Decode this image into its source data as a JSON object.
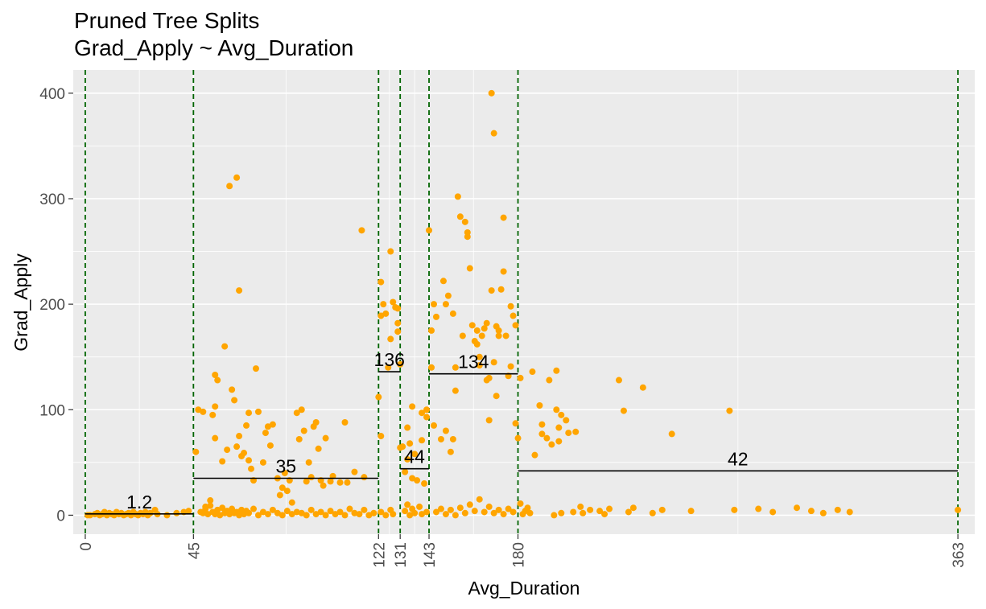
{
  "chart_data": {
    "type": "scatter",
    "title": "Pruned Tree Splits",
    "subtitle": "Grad_Apply ~ Avg_Duration",
    "xlabel": "Avg_Duration",
    "ylabel": "Grad_Apply",
    "xlim": [
      -5,
      370
    ],
    "ylim": [
      -18,
      422
    ],
    "x_ticks": [
      0,
      45,
      122,
      131,
      143,
      180,
      363
    ],
    "y_ticks": [
      0,
      100,
      200,
      300,
      400
    ],
    "grid": true,
    "point_color": "#ffa500",
    "split_color": "#006400",
    "segment_color": "#000000",
    "panel_color": "#ebebeb",
    "splits": [
      0,
      45,
      122,
      131,
      143,
      180,
      363
    ],
    "segments": [
      {
        "x0": 0,
        "x1": 45,
        "value": 1.2,
        "label": "1.2"
      },
      {
        "x0": 45,
        "x1": 122,
        "value": 35,
        "label": "35"
      },
      {
        "x0": 122,
        "x1": 131,
        "value": 136,
        "label": "136"
      },
      {
        "x0": 131,
        "x1": 143,
        "value": 44,
        "label": "44"
      },
      {
        "x0": 143,
        "x1": 180,
        "value": 134,
        "label": "134"
      },
      {
        "x0": 180,
        "x1": 363,
        "value": 42,
        "label": "42"
      }
    ],
    "points": [
      [
        1,
        0
      ],
      [
        2,
        0
      ],
      [
        4,
        1
      ],
      [
        5,
        2
      ],
      [
        6,
        0
      ],
      [
        7,
        1
      ],
      [
        8,
        3
      ],
      [
        9,
        0
      ],
      [
        10,
        2
      ],
      [
        11,
        1
      ],
      [
        12,
        0
      ],
      [
        13,
        3
      ],
      [
        14,
        1
      ],
      [
        15,
        2
      ],
      [
        16,
        0
      ],
      [
        17,
        1
      ],
      [
        18,
        2
      ],
      [
        19,
        0
      ],
      [
        20,
        3
      ],
      [
        21,
        1
      ],
      [
        22,
        0
      ],
      [
        23,
        2
      ],
      [
        24,
        1
      ],
      [
        25,
        3
      ],
      [
        26,
        0
      ],
      [
        27,
        2
      ],
      [
        29,
        5
      ],
      [
        30,
        1
      ],
      [
        34,
        0
      ],
      [
        38,
        2
      ],
      [
        41,
        3
      ],
      [
        43,
        4
      ],
      [
        46,
        60
      ],
      [
        47,
        100
      ],
      [
        49,
        98
      ],
      [
        50,
        8
      ],
      [
        52,
        14
      ],
      [
        53,
        95
      ],
      [
        54,
        103
      ],
      [
        54,
        133
      ],
      [
        54,
        73
      ],
      [
        55,
        128
      ],
      [
        57,
        51
      ],
      [
        58,
        160
      ],
      [
        59,
        62
      ],
      [
        60,
        312
      ],
      [
        61,
        119
      ],
      [
        62,
        109
      ],
      [
        63,
        320
      ],
      [
        63,
        65
      ],
      [
        64,
        213
      ],
      [
        64,
        75
      ],
      [
        65,
        56
      ],
      [
        66,
        59
      ],
      [
        67,
        85
      ],
      [
        68,
        97
      ],
      [
        68,
        52
      ],
      [
        69,
        44
      ],
      [
        70,
        33
      ],
      [
        71,
        139
      ],
      [
        72,
        98
      ],
      [
        74,
        50
      ],
      [
        75,
        78
      ],
      [
        76,
        84
      ],
      [
        77,
        66
      ],
      [
        78,
        86
      ],
      [
        80,
        35
      ],
      [
        81,
        19
      ],
      [
        82,
        26
      ],
      [
        83,
        40
      ],
      [
        84,
        23
      ],
      [
        85,
        33
      ],
      [
        86,
        12
      ],
      [
        88,
        97
      ],
      [
        89,
        72
      ],
      [
        90,
        100
      ],
      [
        91,
        80
      ],
      [
        92,
        32
      ],
      [
        93,
        50
      ],
      [
        94,
        36
      ],
      [
        95,
        84
      ],
      [
        96,
        88
      ],
      [
        97,
        63
      ],
      [
        98,
        33
      ],
      [
        99,
        28
      ],
      [
        100,
        73
      ],
      [
        102,
        32
      ],
      [
        103,
        37
      ],
      [
        106,
        31
      ],
      [
        108,
        88
      ],
      [
        109,
        31
      ],
      [
        112,
        41
      ],
      [
        115,
        270
      ],
      [
        116,
        36
      ],
      [
        48,
        3
      ],
      [
        49,
        2
      ],
      [
        50,
        6
      ],
      [
        51,
        1
      ],
      [
        52,
        9
      ],
      [
        53,
        3
      ],
      [
        54,
        1
      ],
      [
        55,
        5
      ],
      [
        56,
        0
      ],
      [
        57,
        7
      ],
      [
        58,
        2
      ],
      [
        59,
        4
      ],
      [
        60,
        1
      ],
      [
        61,
        6
      ],
      [
        62,
        2
      ],
      [
        63,
        3
      ],
      [
        64,
        0
      ],
      [
        65,
        5
      ],
      [
        66,
        1
      ],
      [
        67,
        4
      ],
      [
        68,
        2
      ],
      [
        70,
        6
      ],
      [
        72,
        0
      ],
      [
        74,
        3
      ],
      [
        76,
        1
      ],
      [
        78,
        5
      ],
      [
        80,
        2
      ],
      [
        82,
        0
      ],
      [
        84,
        4
      ],
      [
        86,
        1
      ],
      [
        88,
        3
      ],
      [
        90,
        2
      ],
      [
        92,
        0
      ],
      [
        94,
        5
      ],
      [
        96,
        1
      ],
      [
        98,
        3
      ],
      [
        100,
        0
      ],
      [
        102,
        4
      ],
      [
        104,
        1
      ],
      [
        106,
        3
      ],
      [
        108,
        0
      ],
      [
        110,
        6
      ],
      [
        112,
        2
      ],
      [
        114,
        1
      ],
      [
        116,
        5
      ],
      [
        118,
        0
      ],
      [
        120,
        2
      ],
      [
        122,
        112
      ],
      [
        123,
        189
      ],
      [
        123,
        221
      ],
      [
        123,
        75
      ],
      [
        124,
        200
      ],
      [
        125,
        191
      ],
      [
        126,
        140
      ],
      [
        127,
        167
      ],
      [
        127,
        250
      ],
      [
        128,
        202
      ],
      [
        129,
        197
      ],
      [
        130,
        174
      ],
      [
        130,
        182
      ],
      [
        130,
        196
      ],
      [
        131,
        64
      ],
      [
        131,
        143
      ],
      [
        123,
        3
      ],
      [
        125,
        0
      ],
      [
        127,
        5
      ],
      [
        128,
        1
      ],
      [
        132,
        65
      ],
      [
        133,
        41
      ],
      [
        134,
        83
      ],
      [
        134,
        53
      ],
      [
        135,
        68
      ],
      [
        136,
        103
      ],
      [
        136,
        35
      ],
      [
        137,
        58
      ],
      [
        138,
        33
      ],
      [
        140,
        97
      ],
      [
        140,
        71
      ],
      [
        141,
        30
      ],
      [
        142,
        100
      ],
      [
        142,
        93
      ],
      [
        133,
        4
      ],
      [
        134,
        10
      ],
      [
        135,
        0
      ],
      [
        136,
        6
      ],
      [
        137,
        2
      ],
      [
        139,
        8
      ],
      [
        140,
        1
      ],
      [
        142,
        3
      ],
      [
        143,
        270
      ],
      [
        144,
        175
      ],
      [
        144,
        140
      ],
      [
        145,
        200
      ],
      [
        145,
        85
      ],
      [
        146,
        188
      ],
      [
        148,
        72
      ],
      [
        149,
        222
      ],
      [
        150,
        80
      ],
      [
        150,
        200
      ],
      [
        151,
        208
      ],
      [
        152,
        60
      ],
      [
        153,
        191
      ],
      [
        153,
        72
      ],
      [
        154,
        140
      ],
      [
        154,
        118
      ],
      [
        155,
        302
      ],
      [
        156,
        283
      ],
      [
        157,
        170
      ],
      [
        158,
        278
      ],
      [
        159,
        264
      ],
      [
        159,
        268
      ],
      [
        160,
        234
      ],
      [
        161,
        180
      ],
      [
        162,
        165
      ],
      [
        163,
        175
      ],
      [
        163,
        162
      ],
      [
        164,
        150
      ],
      [
        164,
        142
      ],
      [
        165,
        170
      ],
      [
        166,
        177
      ],
      [
        167,
        182
      ],
      [
        167,
        128
      ],
      [
        168,
        130
      ],
      [
        168,
        90
      ],
      [
        169,
        213
      ],
      [
        169,
        400
      ],
      [
        170,
        362
      ],
      [
        170,
        145
      ],
      [
        171,
        179
      ],
      [
        171,
        113
      ],
      [
        172,
        170
      ],
      [
        172,
        175
      ],
      [
        173,
        214
      ],
      [
        174,
        231
      ],
      [
        174,
        282
      ],
      [
        175,
        170
      ],
      [
        176,
        132
      ],
      [
        177,
        198
      ],
      [
        177,
        141
      ],
      [
        178,
        189
      ],
      [
        179,
        180
      ],
      [
        179,
        87
      ],
      [
        180,
        73
      ],
      [
        181,
        130
      ],
      [
        146,
        3
      ],
      [
        148,
        6
      ],
      [
        150,
        1
      ],
      [
        152,
        5
      ],
      [
        154,
        0
      ],
      [
        156,
        7
      ],
      [
        158,
        2
      ],
      [
        160,
        10
      ],
      [
        162,
        4
      ],
      [
        164,
        15
      ],
      [
        166,
        3
      ],
      [
        168,
        8
      ],
      [
        170,
        2
      ],
      [
        172,
        5
      ],
      [
        174,
        1
      ],
      [
        176,
        6
      ],
      [
        178,
        3
      ],
      [
        181,
        11
      ],
      [
        182,
        1
      ],
      [
        183,
        4
      ],
      [
        184,
        7
      ],
      [
        185,
        2
      ],
      [
        186,
        136
      ],
      [
        187,
        57
      ],
      [
        189,
        104
      ],
      [
        190,
        86
      ],
      [
        190,
        77
      ],
      [
        192,
        73
      ],
      [
        193,
        128
      ],
      [
        194,
        67
      ],
      [
        196,
        137
      ],
      [
        196,
        100
      ],
      [
        197,
        83
      ],
      [
        197,
        70
      ],
      [
        198,
        95
      ],
      [
        200,
        90
      ],
      [
        201,
        78
      ],
      [
        204,
        79
      ],
      [
        195,
        0
      ],
      [
        198,
        2
      ],
      [
        203,
        3
      ],
      [
        206,
        8
      ],
      [
        210,
        5
      ],
      [
        222,
        128
      ],
      [
        224,
        99
      ],
      [
        232,
        121
      ],
      [
        244,
        77
      ],
      [
        268,
        99
      ],
      [
        207,
        2
      ],
      [
        214,
        4
      ],
      [
        216,
        1
      ],
      [
        218,
        6
      ],
      [
        226,
        3
      ],
      [
        228,
        7
      ],
      [
        236,
        2
      ],
      [
        240,
        5
      ],
      [
        252,
        4
      ],
      [
        270,
        5
      ],
      [
        280,
        6
      ],
      [
        286,
        3
      ],
      [
        296,
        7
      ],
      [
        302,
        4
      ],
      [
        307,
        2
      ],
      [
        313,
        5
      ],
      [
        318,
        3
      ],
      [
        363,
        5
      ]
    ]
  }
}
